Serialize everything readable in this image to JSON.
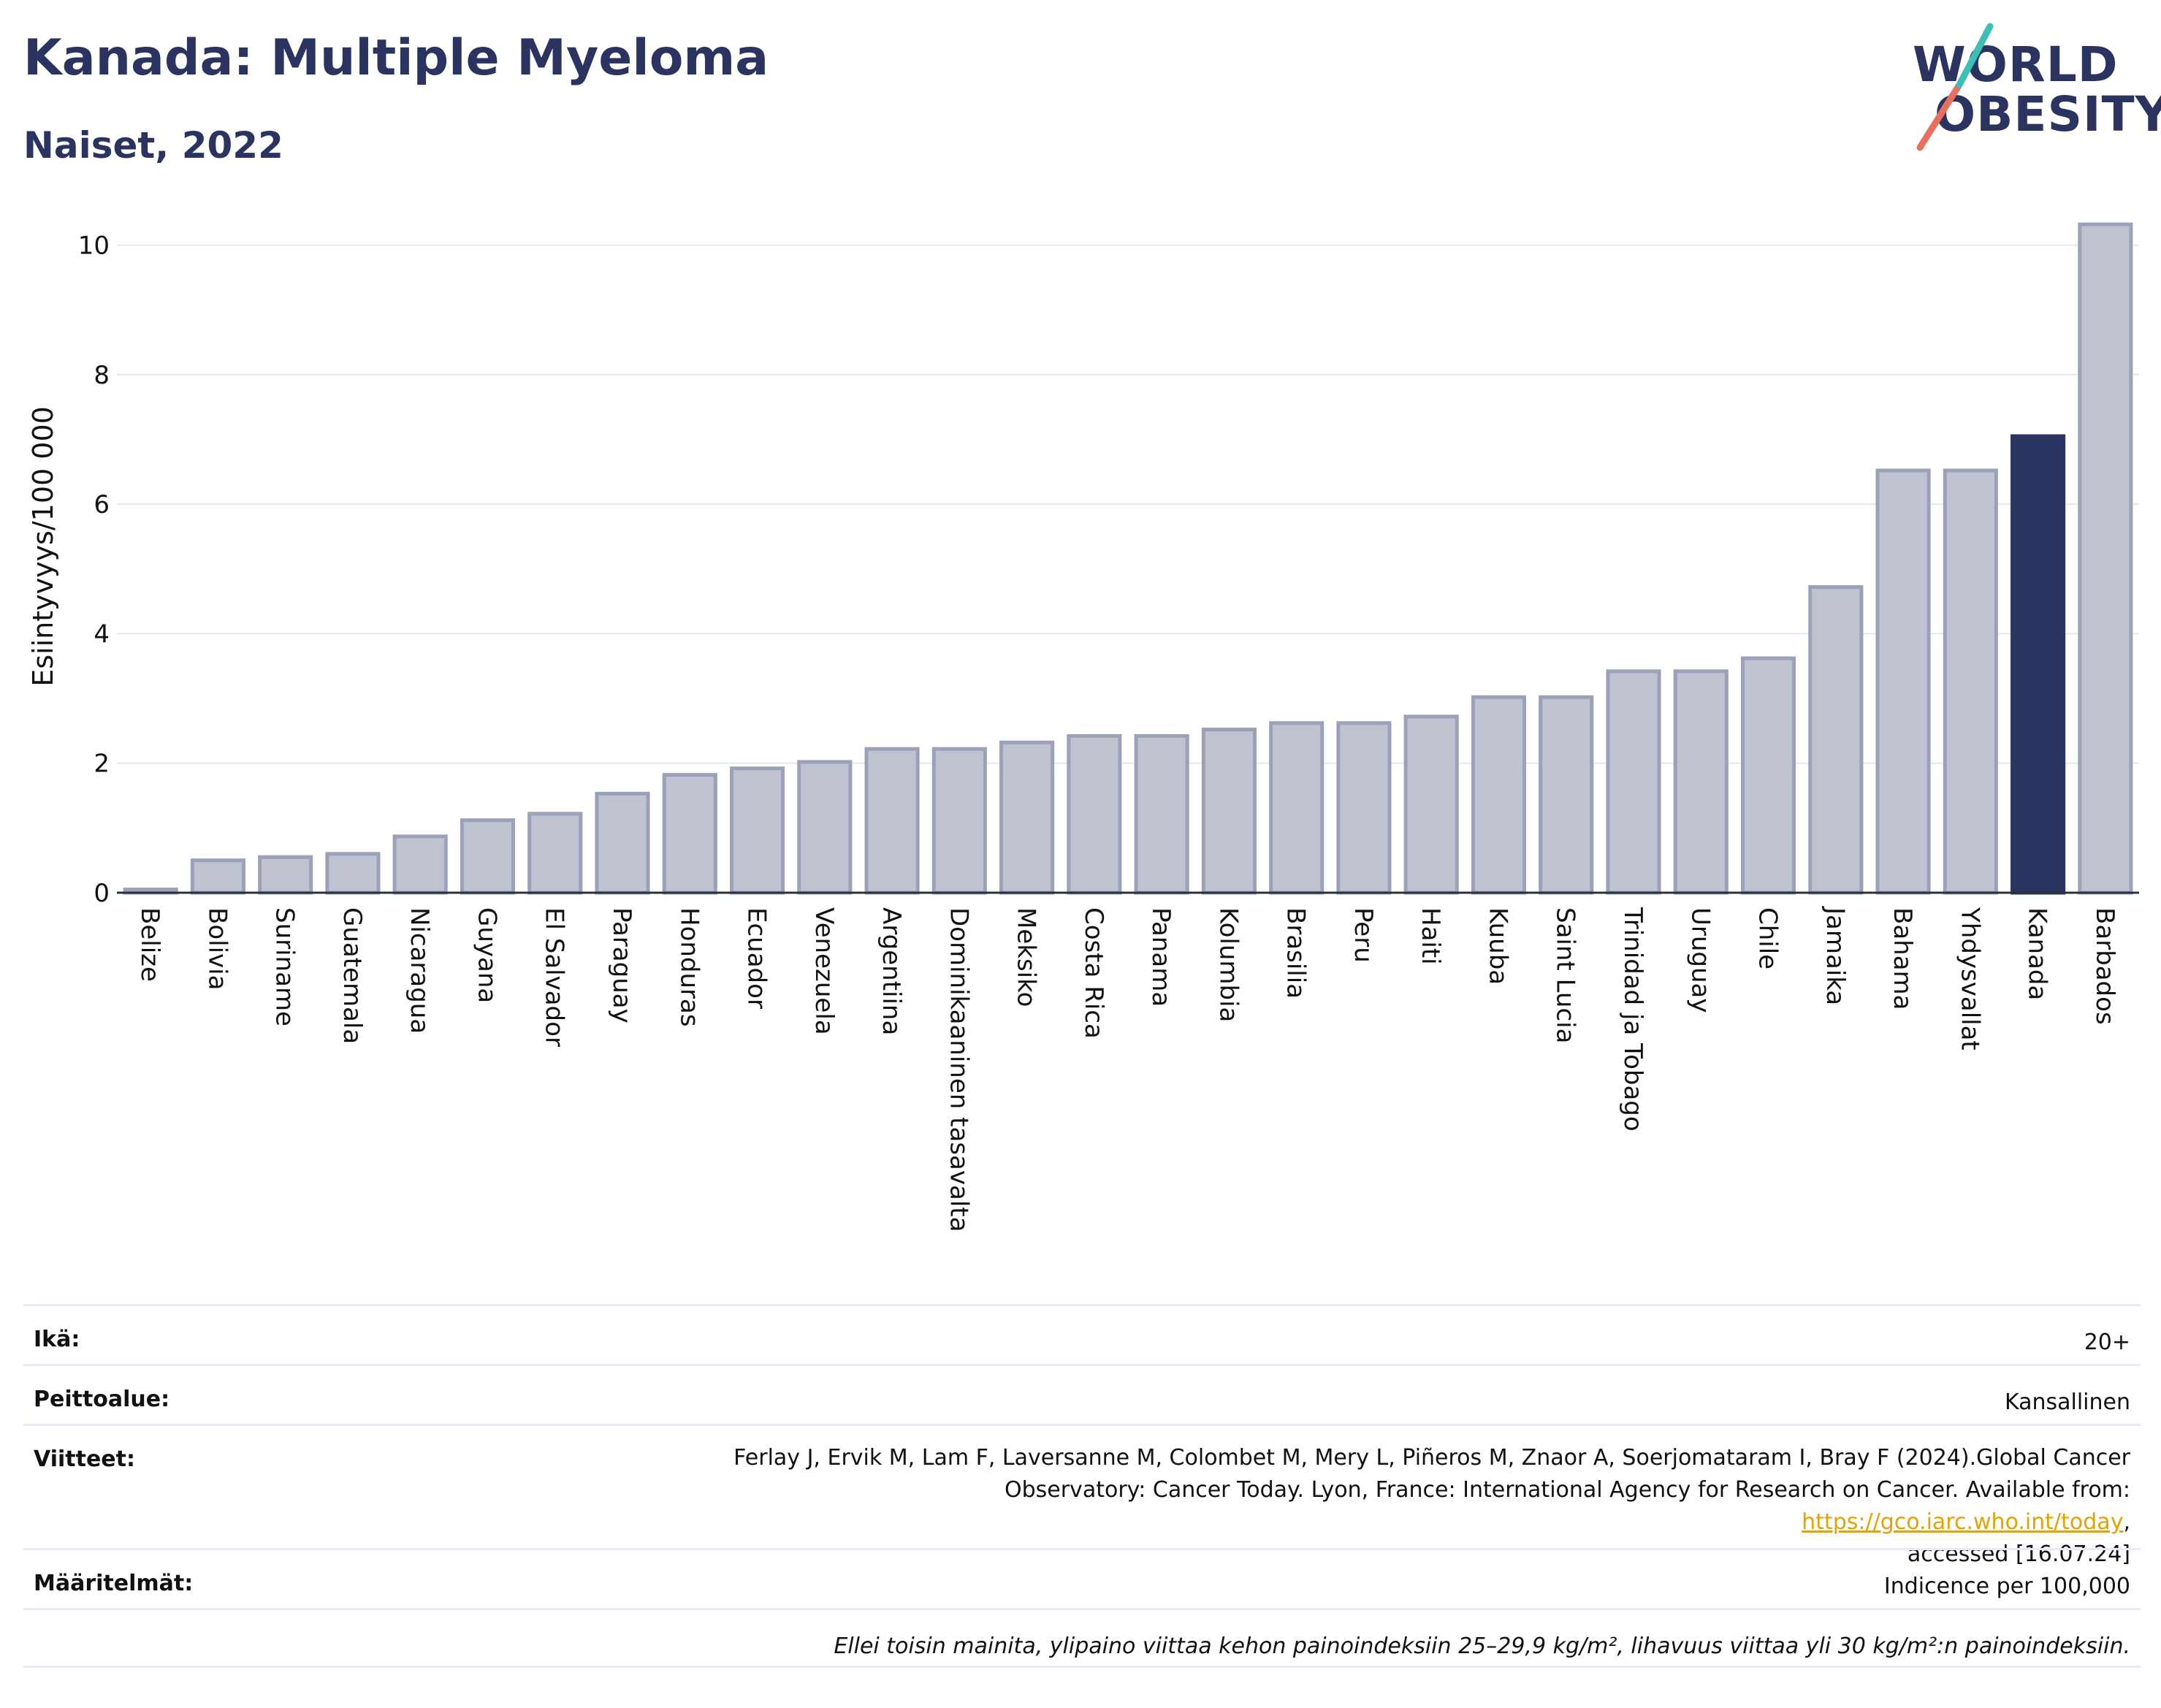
{
  "header": {
    "title": "Kanada: Multiple Myeloma",
    "subtitle": "Naiset, 2022"
  },
  "logo": {
    "line1": "WORLD",
    "line2": "OBESITY"
  },
  "chart_data": {
    "type": "bar",
    "ylabel": "Esiintyvyys/100 000",
    "xlabel": "",
    "ylim": [
      0,
      10.4
    ],
    "yticks": [
      0,
      2,
      4,
      6,
      8,
      10
    ],
    "grid": true,
    "highlight_category": "Kanada",
    "colors": {
      "bar": "#bfc3d0",
      "bar_outline": "#9aa1b8",
      "highlight": "#2b3361",
      "grid": "#e6e8ef"
    },
    "categories": [
      "Belize",
      "Bolivia",
      "Suriname",
      "Guatemala",
      "Nicaragua",
      "Guyana",
      "El Salvador",
      "Paraguay",
      "Honduras",
      "Ecuador",
      "Venezuela",
      "Argentiina",
      "Dominikaaninen tasavalta",
      "Meksiko",
      "Costa Rica",
      "Panama",
      "Kolumbia",
      "Brasilia",
      "Peru",
      "Haiti",
      "Kuuba",
      "Saint Lucia",
      "Trinidad ja Tobago",
      "Uruguay",
      "Chile",
      "Jamaika",
      "Bahama",
      "Yhdysvallat",
      "Kanada",
      "Barbados"
    ],
    "values": [
      0.05,
      0.5,
      0.55,
      0.6,
      0.87,
      1.12,
      1.22,
      1.53,
      1.82,
      1.92,
      2.02,
      2.22,
      2.22,
      2.32,
      2.42,
      2.42,
      2.52,
      2.62,
      2.62,
      2.72,
      3.02,
      3.02,
      3.42,
      3.42,
      3.62,
      4.72,
      6.52,
      6.52,
      7.05,
      10.32
    ]
  },
  "info": {
    "age_label": "Ikä:",
    "age_value": "20+",
    "coverage_label": "Peittoalue:",
    "coverage_value": "Kansallinen",
    "refs_label": "Viitteet:",
    "refs_text_1": "Ferlay J, Ervik M, Lam F, Laversanne M, Colombet M, Mery L, Piñeros M, Znaor A, Soerjomataram I, Bray F (2024).Global Cancer",
    "refs_text_2": "Observatory: Cancer Today. Lyon, France: International Agency for Research on Cancer. Available from: ",
    "refs_link": "https://gco.iarc.who.int/today",
    "refs_text_3": ",",
    "refs_text_4": "accessed [16.07.24]",
    "defs_label": "Määritelmät:",
    "defs_value": "Indicence per 100,000",
    "note": "Ellei toisin mainita, ylipaino viittaa kehon painoindeksiin 25–29,9 kg/m², lihavuus viittaa yli 30 kg/m²:n painoindeksiin."
  }
}
